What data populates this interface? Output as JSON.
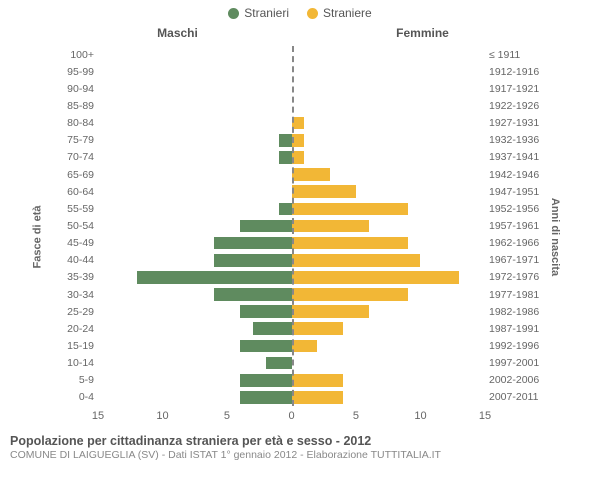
{
  "chart": {
    "type": "population-pyramid",
    "legend": [
      {
        "label": "Stranieri",
        "color": "#5f8b5f"
      },
      {
        "label": "Straniere",
        "color": "#f2b736"
      }
    ],
    "section_left": "Maschi",
    "section_right": "Femmine",
    "y_left_title": "Fasce di età",
    "y_right_title": "Anni di nascita",
    "x_max": 15,
    "x_ticks_left": [
      15,
      10,
      5,
      0
    ],
    "x_ticks_right": [
      5,
      10,
      15
    ],
    "colors": {
      "male": "#5f8b5f",
      "female": "#f2b736",
      "grid": "#eeeeee",
      "center_line": "#888888",
      "text": "#666666",
      "background": "#ffffff"
    },
    "bar_height_ratio": 0.74,
    "fontsize": {
      "tick": 11,
      "title": 12,
      "legend": 12
    },
    "rows": [
      {
        "age": "100+",
        "birth": "≤ 1911",
        "m": 0,
        "f": 0
      },
      {
        "age": "95-99",
        "birth": "1912-1916",
        "m": 0,
        "f": 0
      },
      {
        "age": "90-94",
        "birth": "1917-1921",
        "m": 0,
        "f": 0
      },
      {
        "age": "85-89",
        "birth": "1922-1926",
        "m": 0,
        "f": 0
      },
      {
        "age": "80-84",
        "birth": "1927-1931",
        "m": 0,
        "f": 1
      },
      {
        "age": "75-79",
        "birth": "1932-1936",
        "m": 1,
        "f": 1
      },
      {
        "age": "70-74",
        "birth": "1937-1941",
        "m": 1,
        "f": 1
      },
      {
        "age": "65-69",
        "birth": "1942-1946",
        "m": 0,
        "f": 3
      },
      {
        "age": "60-64",
        "birth": "1947-1951",
        "m": 0,
        "f": 5
      },
      {
        "age": "55-59",
        "birth": "1952-1956",
        "m": 1,
        "f": 9
      },
      {
        "age": "50-54",
        "birth": "1957-1961",
        "m": 4,
        "f": 6
      },
      {
        "age": "45-49",
        "birth": "1962-1966",
        "m": 6,
        "f": 9
      },
      {
        "age": "40-44",
        "birth": "1967-1971",
        "m": 6,
        "f": 10
      },
      {
        "age": "35-39",
        "birth": "1972-1976",
        "m": 12,
        "f": 13
      },
      {
        "age": "30-34",
        "birth": "1977-1981",
        "m": 6,
        "f": 9
      },
      {
        "age": "25-29",
        "birth": "1982-1986",
        "m": 4,
        "f": 6
      },
      {
        "age": "20-24",
        "birth": "1987-1991",
        "m": 3,
        "f": 4
      },
      {
        "age": "15-19",
        "birth": "1992-1996",
        "m": 4,
        "f": 2
      },
      {
        "age": "10-14",
        "birth": "1997-2001",
        "m": 2,
        "f": 0
      },
      {
        "age": "5-9",
        "birth": "2002-2006",
        "m": 4,
        "f": 4
      },
      {
        "age": "0-4",
        "birth": "2007-2011",
        "m": 4,
        "f": 4
      }
    ]
  },
  "footer": {
    "title": "Popolazione per cittadinanza straniera per età e sesso - 2012",
    "sub": "COMUNE DI LAIGUEGLIA (SV) - Dati ISTAT 1° gennaio 2012 - Elaborazione TUTTITALIA.IT"
  }
}
